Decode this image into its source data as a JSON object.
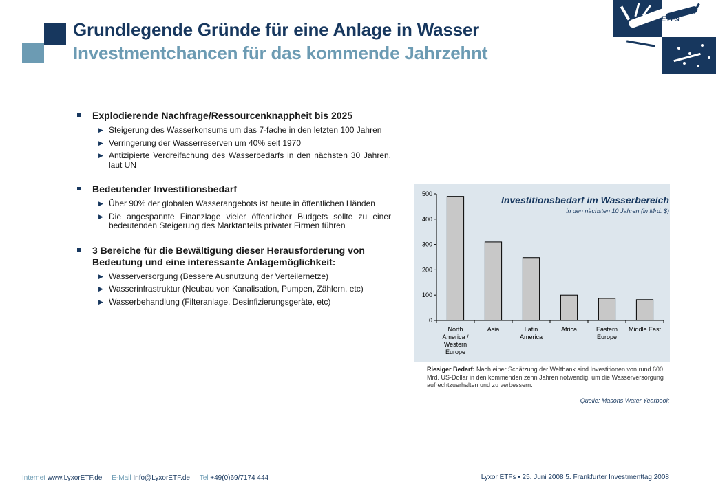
{
  "header": {
    "title": "Grundlegende Gründe für eine Anlage in Wasser",
    "subtitle": "Investmentchancen für das kommende Jahrzehnt",
    "logo_text": "ETFs"
  },
  "sections": [
    {
      "heading": "Explodierende Nachfrage/Ressourcenknappheit bis 2025",
      "items": [
        "Steigerung des Wasserkonsums um das 7-fache in den letzten 100 Jahren",
        "Verringerung der Wasserreserven um 40% seit 1970",
        "Antizipierte Verdreifachung des Wasserbedarfs in den nächsten 30 Jahren, laut UN"
      ]
    },
    {
      "heading": "Bedeutender Investitionsbedarf",
      "items": [
        "Über 90% der globalen Wasserangebots ist heute in öffentlichen Händen",
        "Die angespannte Finanzlage vieler öffentlicher Budgets sollte zu einer bedeutenden Steigerung des Marktanteils privater Firmen führen"
      ]
    },
    {
      "heading": "3 Bereiche für die Bewältigung dieser Herausforderung von Bedeutung und eine interessante Anlagemöglichkeit:",
      "items": [
        "Wasserversorgung (Bessere Ausnutzung der Verteilernetze)",
        "Wasserinfrastruktur (Neubau von Kanalisation, Pumpen, Zählern, etc)",
        "Wasserbehandlung (Filteranlage, Desinfizierungsgeräte, etc)"
      ]
    }
  ],
  "chart_data": {
    "type": "bar",
    "title": "Investitionsbedarf im Wasserbereich",
    "subtitle": "in den nächsten 10 Jahren (in Mrd. $)",
    "categories": [
      [
        "North",
        "America /",
        "Western",
        "Europe"
      ],
      [
        "Asia"
      ],
      [
        "Latin",
        "America"
      ],
      [
        "Africa"
      ],
      [
        "Eastern",
        "Europe"
      ],
      [
        "Middle East"
      ]
    ],
    "values": [
      490,
      310,
      248,
      100,
      87,
      82
    ],
    "yticks": [
      0,
      100,
      200,
      300,
      400,
      500
    ],
    "ylim": [
      0,
      500
    ],
    "grid": false,
    "bar_color": "#c8c8c8"
  },
  "note": {
    "label": "Riesiger Bedarf:",
    "text": " Nach einer Schätzung der Weltbank sind Investitionen von rund 600 Mrd. US-Dollar in den kommenden zehn Jahren notwendig, um die Wasserversorgung aufrechtzuerhalten und zu verbessern."
  },
  "source": "Quelle: Masons Water Yearbook",
  "footer": {
    "internet_label": "Internet",
    "internet_value": "www.LyxorETF.de",
    "email_label": "E-Mail",
    "email_value": "Info@LyxorETF.de",
    "tel_label": "Tel",
    "tel_value": "+49(0)69/7174 444",
    "right_text": "Lyxor ETFs • 25. Juni 2008 5. Frankfurter Investmenttag 2008"
  },
  "colors": {
    "primary": "#17375e",
    "secondary": "#6c9bb3",
    "chart_bg": "#dde6ed"
  }
}
